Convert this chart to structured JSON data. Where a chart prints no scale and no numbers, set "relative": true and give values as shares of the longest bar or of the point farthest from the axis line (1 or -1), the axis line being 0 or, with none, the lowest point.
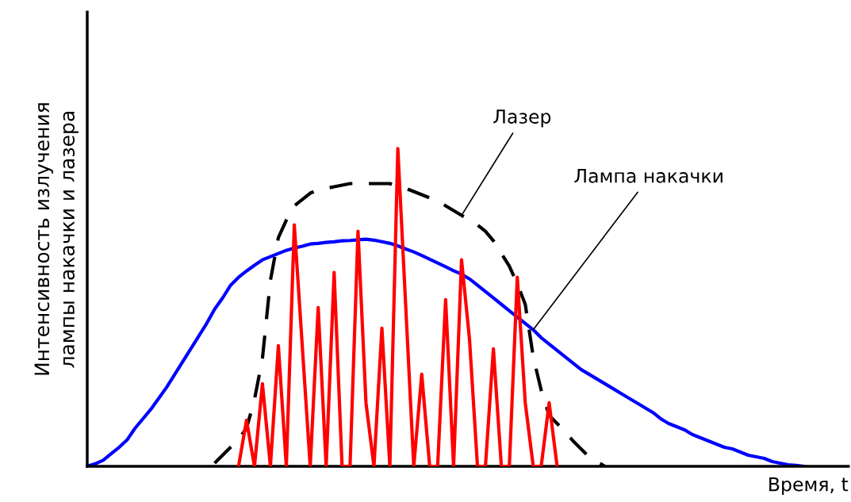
{
  "chart_data": {
    "type": "line",
    "relative": true,
    "xlabel": "Время, t",
    "ylabel": "Интенсивность излучения\nлампы накачки и лазера",
    "categories": [
      null,
      null,
      null,
      null,
      null,
      null,
      null,
      null,
      null,
      null,
      null,
      null,
      null,
      null,
      null,
      null,
      null,
      null,
      null,
      null,
      null,
      null,
      null,
      null,
      null,
      null,
      null,
      null,
      null,
      null,
      null,
      null,
      null,
      null,
      null,
      null,
      null,
      null,
      null,
      null,
      null,
      null,
      null,
      null,
      null,
      null,
      null,
      null,
      null,
      null,
      null,
      null,
      null,
      null,
      null,
      null,
      null,
      null,
      null,
      null,
      null,
      null,
      null,
      null,
      null,
      null,
      null,
      null,
      null,
      null,
      null,
      null,
      null,
      null,
      null,
      null,
      null,
      null,
      null,
      null,
      null,
      null,
      null,
      null,
      null,
      null,
      null,
      null,
      null,
      null,
      null
    ],
    "series": [
      {
        "color": "#ff0000",
        "line_style": "solid",
        "values": [
          null,
          null,
          null,
          null,
          null,
          null,
          null,
          null,
          null,
          null,
          null,
          null,
          null,
          null,
          null,
          null,
          null,
          null,
          null,
          0,
          0.145,
          0,
          0.26,
          0,
          0.38,
          0,
          0.76,
          0.38,
          0,
          0.5,
          0,
          0.61,
          0,
          0,
          0.74,
          0.2,
          0,
          0.435,
          0,
          1,
          0.5,
          0,
          0.29,
          0,
          0,
          0.525,
          0,
          0.65,
          0.4,
          0,
          0,
          0.37,
          0,
          0,
          0.595,
          0.2,
          0,
          0,
          0.2,
          0,
          null,
          null,
          null,
          null,
          null,
          null,
          null,
          null,
          null,
          null,
          null,
          null,
          null,
          null,
          null,
          null,
          null,
          null,
          null,
          null,
          null,
          null,
          null,
          null,
          null,
          null,
          null,
          null,
          null,
          null,
          null
        ]
      },
      {
        "name": "Лазер",
        "color": "#000000",
        "line_style": "dashed",
        "values": [
          null,
          null,
          null,
          null,
          null,
          null,
          null,
          null,
          null,
          null,
          null,
          null,
          null,
          null,
          null,
          null,
          0.01,
          0.035,
          0.06,
          0.085,
          0.12,
          0.21,
          0.34,
          0.585,
          0.72,
          0.775,
          0.82,
          0.84,
          0.86,
          0.87,
          0.875,
          0.88,
          0.885,
          0.89,
          0.89,
          0.89,
          0.89,
          0.89,
          0.89,
          0.88,
          0.875,
          0.865,
          0.855,
          0.845,
          0.835,
          0.82,
          0.805,
          0.79,
          0.775,
          0.76,
          0.74,
          0.71,
          0.67,
          0.63,
          0.575,
          0.51,
          0.345,
          0.24,
          0.16,
          0.135,
          0.11,
          0.08,
          0.055,
          0.03,
          0.015,
          0,
          null,
          null,
          null,
          null,
          null,
          null,
          null,
          null,
          null,
          null,
          null,
          null,
          null,
          null,
          null,
          null,
          null,
          null,
          null,
          null,
          null,
          null,
          null,
          null,
          null
        ]
      },
      {
        "name": "Лампа накачки",
        "color": "#0000ff",
        "line_style": "solid",
        "values": [
          0,
          0.008,
          0.019,
          0.04,
          0.06,
          0.083,
          0.12,
          0.15,
          0.18,
          0.215,
          0.25,
          0.29,
          0.33,
          0.37,
          0.41,
          0.45,
          0.495,
          0.53,
          0.57,
          0.595,
          0.615,
          0.633,
          0.65,
          0.66,
          0.67,
          0.68,
          0.687,
          0.693,
          0.7,
          0.702,
          0.705,
          0.707,
          0.71,
          0.711,
          0.713,
          0.715,
          0.712,
          0.707,
          0.702,
          0.694,
          0.684,
          0.675,
          0.664,
          0.652,
          0.64,
          0.628,
          0.616,
          0.605,
          0.59,
          0.57,
          0.55,
          0.53,
          0.51,
          0.49,
          0.47,
          0.45,
          0.43,
          0.405,
          0.385,
          0.365,
          0.345,
          0.325,
          0.305,
          0.29,
          0.275,
          0.26,
          0.245,
          0.23,
          0.215,
          0.2,
          0.185,
          0.17,
          0.15,
          0.135,
          0.125,
          0.115,
          0.1,
          0.09,
          0.08,
          0.07,
          0.06,
          0.055,
          0.045,
          0.035,
          0.03,
          0.025,
          0.015,
          0.01,
          0.005,
          0.003,
          0
        ]
      }
    ]
  }
}
